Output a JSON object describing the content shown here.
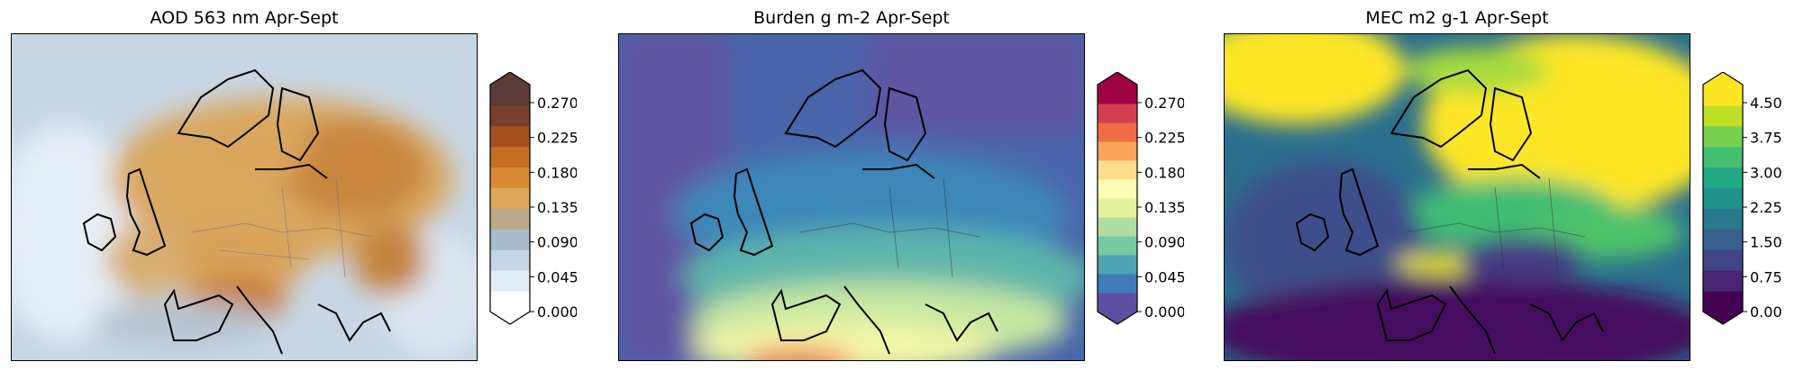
{
  "panels": [
    {
      "title": "AOD 563 nm Apr-Sept",
      "colormap": "copper-grey",
      "colorbar": {
        "ticks": [
          "0.000",
          "0.045",
          "0.090",
          "0.135",
          "0.180",
          "0.225",
          "0.270"
        ],
        "extend": "both",
        "colors": [
          "#ffffff",
          "#e3ebf3",
          "#c5d5e3",
          "#a8bccd",
          "#b8aa8a",
          "#dfa75a",
          "#d98c37",
          "#c66e24",
          "#a65020",
          "#7a3f30",
          "#5c3a35"
        ]
      }
    },
    {
      "title": "Burden g m-2 Apr-Sept",
      "colormap": "Spectral_r",
      "colorbar": {
        "ticks": [
          "0.000",
          "0.045",
          "0.090",
          "0.135",
          "0.180",
          "0.225",
          "0.270"
        ],
        "extend": "both",
        "colors": [
          "#5e4fa2",
          "#3f7cb8",
          "#4fa4b1",
          "#78c8a4",
          "#b0dea2",
          "#e3f29b",
          "#fefcb7",
          "#fedd8d",
          "#fca55d",
          "#f06c45",
          "#d53e4f",
          "#9e0142"
        ]
      }
    },
    {
      "title": "MEC m2 g-1 Apr-Sept",
      "colormap": "viridis",
      "colorbar": {
        "ticks": [
          "0.00",
          "0.75",
          "1.50",
          "2.25",
          "3.00",
          "3.75",
          "4.50"
        ],
        "extend": "both",
        "colors": [
          "#440154",
          "#482475",
          "#414487",
          "#355f8d",
          "#2a788e",
          "#21918c",
          "#22a884",
          "#44bf70",
          "#7ad151",
          "#bddf26",
          "#fde725"
        ]
      }
    }
  ]
}
